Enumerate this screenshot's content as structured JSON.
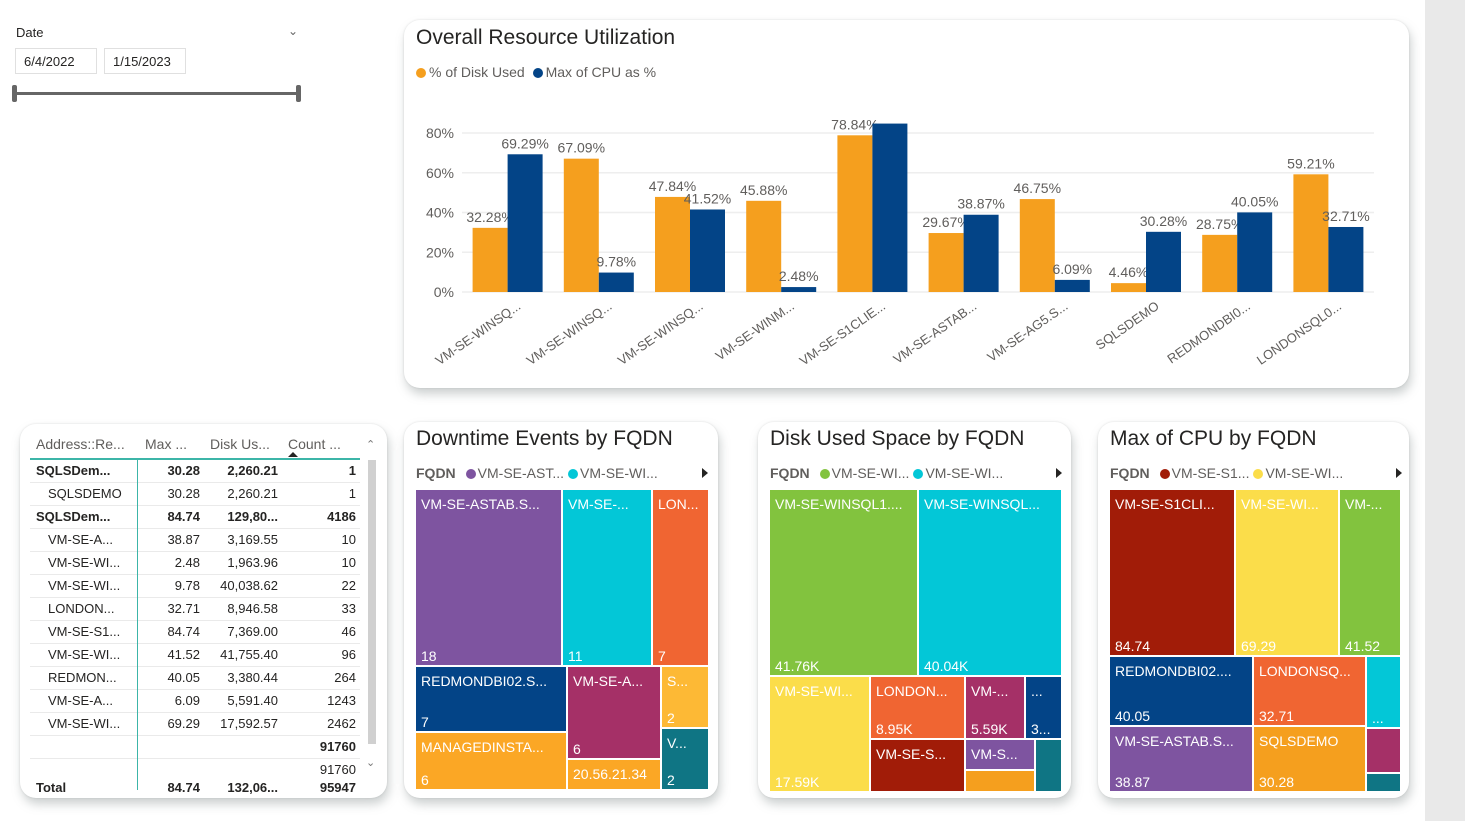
{
  "slicer": {
    "label": "Date",
    "start": "6/4/2022",
    "end": "1/15/2023"
  },
  "bar_card": {
    "title": "Overall Resource Utilization",
    "legend": [
      {
        "label": "% of Disk Used",
        "color": "#F59F1E"
      },
      {
        "label": "Max of CPU as %",
        "color": "#034487"
      }
    ]
  },
  "chart_data": [
    {
      "type": "bar",
      "title": "Overall Resource Utilization",
      "categories": [
        "VM-SE-WINSQ...",
        "VM-SE-WINSQ...",
        "VM-SE-WINSQ...",
        "VM-SE-WINM...",
        "VM-SE-S1CLIE...",
        "VM-SE-ASTAB...",
        "VM-SE-AG5.S...",
        "SQLSDEMO",
        "REDMONDBI0...",
        "LONDONSQL0..."
      ],
      "series": [
        {
          "name": "% of Disk Used",
          "color": "#F59F1E",
          "values": [
            32.28,
            67.09,
            47.84,
            45.88,
            78.84,
            29.67,
            46.75,
            4.46,
            28.75,
            59.21
          ],
          "labels": [
            "32.28%",
            "67.09%",
            "47.84%",
            "45.88%",
            "78.84%",
            "29.67%",
            "46.75%",
            "4.46%",
            "28.75%",
            "59.21%"
          ]
        },
        {
          "name": "Max of CPU as %",
          "color": "#034487",
          "values": [
            69.29,
            9.78,
            41.52,
            2.48,
            84.74,
            38.87,
            6.09,
            30.28,
            40.05,
            32.71
          ],
          "labels": [
            "69.29%",
            "9.78%",
            "41.52%",
            "2.48%",
            "",
            "38.87%",
            "6.09%",
            "30.28%",
            "40.05%",
            "32.71%"
          ]
        }
      ],
      "yticks": [
        "0%",
        "20%",
        "40%",
        "60%",
        "80%"
      ],
      "ylim": [
        0,
        85
      ],
      "xlabel": "",
      "ylabel": "",
      "grid": true,
      "legend": "top-left"
    }
  ],
  "table": {
    "headers": [
      "Address::Re...",
      "Max ...",
      "Disk Us...",
      "Count ..."
    ],
    "rows": [
      {
        "name": "SQLSDem...",
        "max": "30.28",
        "disk": "2,260.21",
        "count": "1",
        "bold": true,
        "indent": false
      },
      {
        "name": "SQLSDEMO",
        "max": "30.28",
        "disk": "2,260.21",
        "count": "1",
        "bold": false,
        "indent": true
      },
      {
        "name": "SQLSDem...",
        "max": "84.74",
        "disk": "129,80...",
        "count": "4186",
        "bold": true,
        "indent": false
      },
      {
        "name": "VM-SE-A...",
        "max": "38.87",
        "disk": "3,169.55",
        "count": "10",
        "bold": false,
        "indent": true
      },
      {
        "name": "VM-SE-WI...",
        "max": "2.48",
        "disk": "1,963.96",
        "count": "10",
        "bold": false,
        "indent": true
      },
      {
        "name": "VM-SE-WI...",
        "max": "9.78",
        "disk": "40,038.62",
        "count": "22",
        "bold": false,
        "indent": true
      },
      {
        "name": "LONDON...",
        "max": "32.71",
        "disk": "8,946.58",
        "count": "33",
        "bold": false,
        "indent": true
      },
      {
        "name": "VM-SE-S1...",
        "max": "84.74",
        "disk": "7,369.00",
        "count": "46",
        "bold": false,
        "indent": true
      },
      {
        "name": "VM-SE-WI...",
        "max": "41.52",
        "disk": "41,755.40",
        "count": "96",
        "bold": false,
        "indent": true
      },
      {
        "name": "REDMON...",
        "max": "40.05",
        "disk": "3,380.44",
        "count": "264",
        "bold": false,
        "indent": true
      },
      {
        "name": "VM-SE-A...",
        "max": "6.09",
        "disk": "5,591.40",
        "count": "1243",
        "bold": false,
        "indent": true
      },
      {
        "name": "VM-SE-WI...",
        "max": "69.29",
        "disk": "17,592.57",
        "count": "2462",
        "bold": false,
        "indent": true
      },
      {
        "name": "",
        "max": "",
        "disk": "",
        "count": "91760",
        "bold": true,
        "indent": false
      }
    ],
    "partial_row_count": "91760",
    "total": {
      "label": "Total",
      "max": "84.74",
      "disk": "132,06...",
      "count": "95947"
    }
  },
  "treemaps": [
    {
      "title": "Downtime Events by FQDN",
      "legend_field": "FQDN",
      "legend": [
        {
          "label": "VM-SE-AST...",
          "color": "#7E54A0"
        },
        {
          "label": "VM-SE-WI...",
          "color": "#03C7D7"
        }
      ],
      "tiles": [
        {
          "label": "VM-SE-ASTAB.S...",
          "value": "18",
          "color": "#7E54A0"
        },
        {
          "label": "VM-SE-...",
          "value": "11",
          "color": "#03C7D7"
        },
        {
          "label": "LON...",
          "value": "7",
          "color": "#F06532"
        },
        {
          "label": "REDMONDBI02.S...",
          "value": "7",
          "color": "#034487"
        },
        {
          "label": "VM-SE-A...",
          "value": "6",
          "color": "#A53067"
        },
        {
          "label": "S...",
          "value": "2",
          "color": "#FDB935"
        },
        {
          "label": "MANAGEDINSTA...",
          "value": "6",
          "color": "#FBA725"
        },
        {
          "label": "20.56.21.34",
          "value": "",
          "color": "#FBA725"
        },
        {
          "label": "V...",
          "value": "2",
          "color": "#0F7584"
        }
      ]
    },
    {
      "title": "Disk Used Space by FQDN",
      "legend_field": "FQDN",
      "legend": [
        {
          "label": "VM-SE-WI...",
          "color": "#82C33E"
        },
        {
          "label": "VM-SE-WI...",
          "color": "#03C7D7"
        }
      ],
      "tiles": [
        {
          "label": "VM-SE-WINSQL1....",
          "value": "41.76K",
          "color": "#82C33E"
        },
        {
          "label": "VM-SE-WINSQL...",
          "value": "40.04K",
          "color": "#03C7D7"
        },
        {
          "label": "VM-SE-WI...",
          "value": "17.59K",
          "color": "#FBDD4A"
        },
        {
          "label": "LONDON...",
          "value": "8.95K",
          "color": "#F06532"
        },
        {
          "label": "VM-...",
          "value": "5.59K",
          "color": "#A53067"
        },
        {
          "label": "...",
          "value": "3...",
          "color": "#034487"
        },
        {
          "label": "VM-SE-S...",
          "value": "",
          "color": "#A11C08"
        },
        {
          "label": "VM-S...",
          "value": "",
          "color": "#7E54A0"
        },
        {
          "label": "",
          "value": "",
          "color": "#F59F1E"
        },
        {
          "label": "",
          "value": "",
          "color": "#0F7584"
        }
      ]
    },
    {
      "title": "Max of CPU by FQDN",
      "legend_field": "FQDN",
      "legend": [
        {
          "label": "VM-SE-S1...",
          "color": "#A11C08"
        },
        {
          "label": "VM-SE-WI...",
          "color": "#FBDD4A"
        }
      ],
      "tiles": [
        {
          "label": "VM-SE-S1CLI...",
          "value": "84.74",
          "color": "#A11C08"
        },
        {
          "label": "VM-SE-WI...",
          "value": "69.29",
          "color": "#FBDD4A"
        },
        {
          "label": "VM-...",
          "value": "41.52",
          "color": "#82C33E"
        },
        {
          "label": "REDMONDBI02....",
          "value": "40.05",
          "color": "#034487"
        },
        {
          "label": "LONDONSQ...",
          "value": "32.71",
          "color": "#F06532"
        },
        {
          "label": "",
          "value": "...",
          "color": "#03C7D7"
        },
        {
          "label": "VM-SE-ASTAB.S...",
          "value": "38.87",
          "color": "#7E54A0"
        },
        {
          "label": "SQLSDEMO",
          "value": "30.28",
          "color": "#F59F1E"
        },
        {
          "label": "",
          "value": "",
          "color": "#A53067"
        },
        {
          "label": "",
          "value": "",
          "color": "#0F7584"
        }
      ]
    }
  ]
}
